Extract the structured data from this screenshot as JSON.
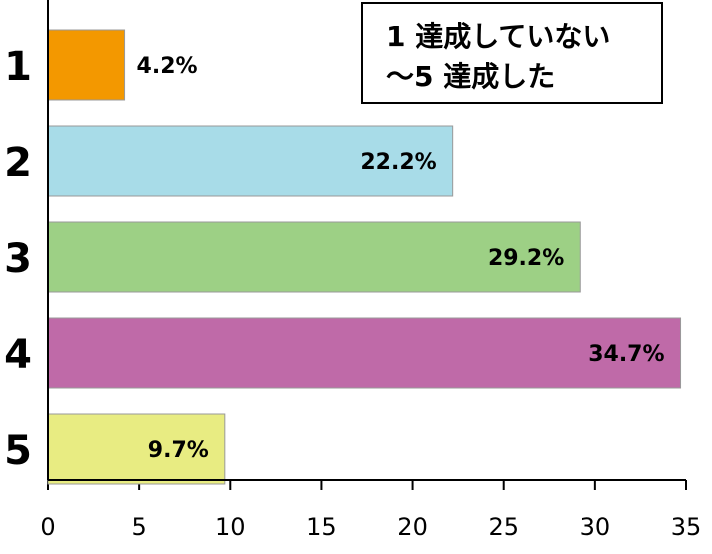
{
  "chart_data": {
    "type": "bar",
    "orientation": "horizontal",
    "annotation": [
      "1 達成していない",
      "～5 達成した"
    ],
    "categories": [
      "1",
      "2",
      "3",
      "4",
      "5"
    ],
    "values": [
      4.2,
      22.2,
      29.2,
      34.7,
      9.7
    ],
    "value_labels": [
      "4.2%",
      "22.2%",
      "29.2%",
      "34.7%",
      "9.7%"
    ],
    "colors": [
      "#f39800",
      "#a8dce8",
      "#9dd085",
      "#bf6aa8",
      "#e8ec82"
    ],
    "xlim": [
      0,
      35
    ],
    "xticks": [
      0,
      5,
      10,
      15,
      20,
      25,
      30,
      35
    ]
  }
}
